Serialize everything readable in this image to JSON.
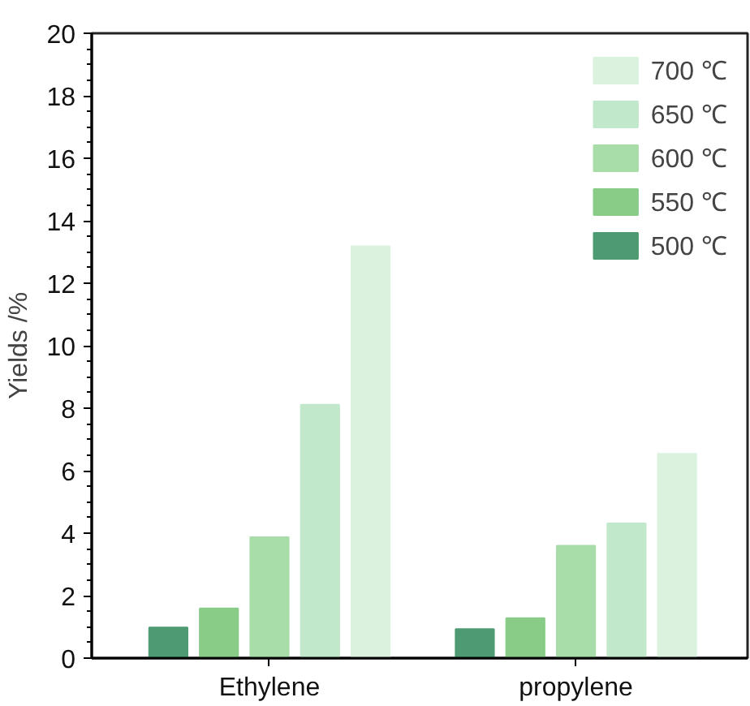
{
  "chart_data": {
    "type": "bar",
    "ylabel": "Yields /%",
    "categories": [
      "Ethylene",
      "propylene"
    ],
    "series": [
      {
        "name": "500 ℃",
        "color": "#4e9a72",
        "values": [
          0.98,
          0.93
        ]
      },
      {
        "name": "550 ℃",
        "color": "#88cc88",
        "values": [
          1.59,
          1.28
        ]
      },
      {
        "name": "600 ℃",
        "color": "#a8dca8",
        "values": [
          3.87,
          3.6
        ]
      },
      {
        "name": "650 ℃",
        "color": "#c2e8cb",
        "values": [
          8.11,
          4.31
        ]
      },
      {
        "name": "700 ℃",
        "color": "#daf2de",
        "values": [
          13.18,
          6.54
        ]
      }
    ],
    "ylim": [
      0,
      20
    ],
    "yticks": [
      0,
      2,
      4,
      6,
      8,
      10,
      12,
      14,
      16,
      18,
      20
    ],
    "grid": false,
    "legend": "top right"
  }
}
